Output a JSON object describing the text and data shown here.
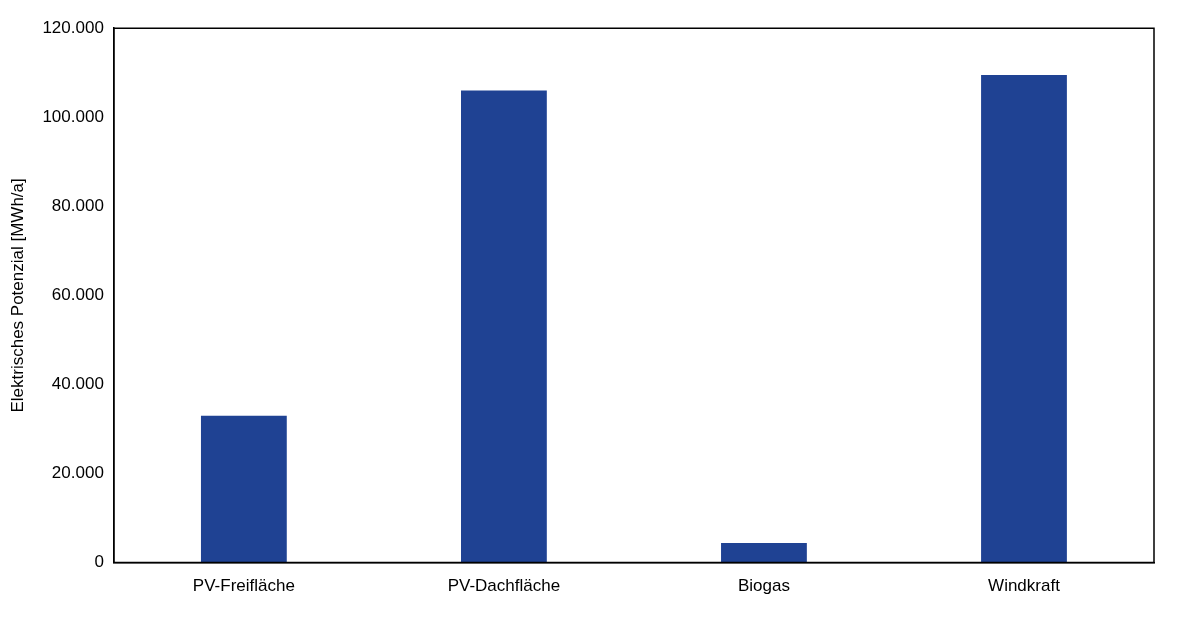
{
  "chart_data": {
    "type": "bar",
    "ylabel": "Elektrisches Potenzial [MWh/a]",
    "categories": [
      "PV-Freifläche",
      "PV-Dachfläche",
      "Biogas",
      "Windkraft"
    ],
    "values": [
      33000,
      106000,
      4400,
      109500
    ],
    "color": "#1f4293",
    "ylim": [
      0,
      120000
    ],
    "yticks": [
      {
        "value": 0,
        "label": "0"
      },
      {
        "value": 20000,
        "label": "20.000"
      },
      {
        "value": 40000,
        "label": "40.000"
      },
      {
        "value": 60000,
        "label": "60.000"
      },
      {
        "value": 80000,
        "label": "80.000"
      },
      {
        "value": 100000,
        "label": "100.000"
      },
      {
        "value": 120000,
        "label": "120.000"
      }
    ],
    "grid": false,
    "legend": false
  }
}
